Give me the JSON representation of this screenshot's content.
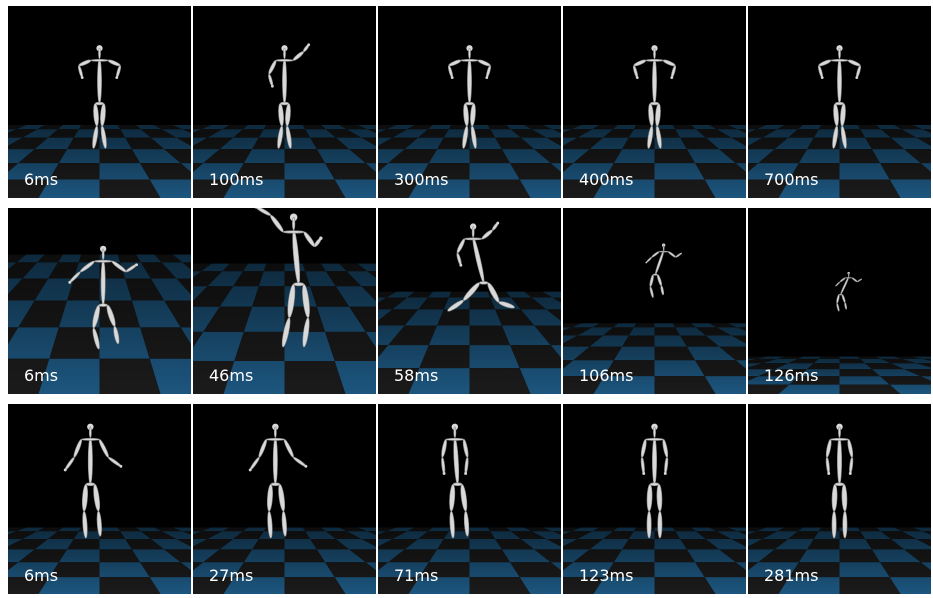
{
  "strips": [
    {
      "frames": [
        {
          "time": "6ms",
          "pose": "stand-wide-arms"
        },
        {
          "time": "100ms",
          "pose": "stand-crossed-legs"
        },
        {
          "time": "300ms",
          "pose": "stand-wide-arms"
        },
        {
          "time": "400ms",
          "pose": "stand-wide-arms"
        },
        {
          "time": "700ms",
          "pose": "stand-wide-arms"
        }
      ]
    },
    {
      "frames": [
        {
          "time": "6ms",
          "pose": "arms-out"
        },
        {
          "time": "46ms",
          "pose": "reach-up"
        },
        {
          "time": "58ms",
          "pose": "leap"
        },
        {
          "time": "106ms",
          "pose": "small-fall"
        },
        {
          "time": "126ms",
          "pose": "tiny-fall"
        }
      ]
    },
    {
      "frames": [
        {
          "time": "6ms",
          "pose": "walk-arms-out"
        },
        {
          "time": "27ms",
          "pose": "walk-arms-out"
        },
        {
          "time": "71ms",
          "pose": "walk-side"
        },
        {
          "time": "123ms",
          "pose": "stand-front"
        },
        {
          "time": "281ms",
          "pose": "stand-front"
        }
      ]
    }
  ],
  "colors": {
    "floor_dark": "#1c1c1c",
    "floor_blue": "#1e5a85",
    "background": "#000000",
    "skeleton": "#d9d9d9"
  }
}
